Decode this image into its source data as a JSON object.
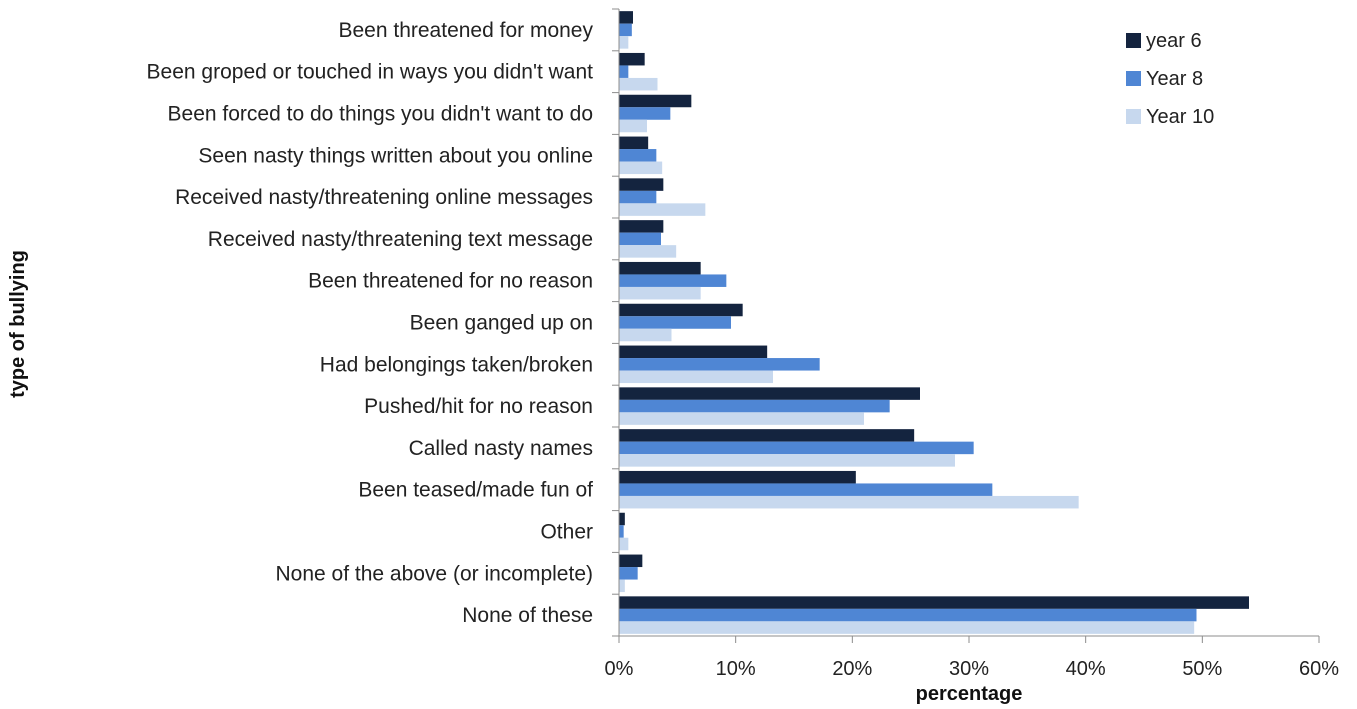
{
  "chart_data": {
    "type": "bar",
    "orientation": "horizontal",
    "xlabel": "percentage",
    "ylabel": "type of bullying",
    "xlim": [
      0,
      60
    ],
    "xticks": [
      "0%",
      "10%",
      "20%",
      "30%",
      "40%",
      "50%",
      "60%"
    ],
    "grid": false,
    "legend_position": "top-right",
    "categories": [
      "Been threatened for money",
      "Been groped or touched in ways you didn't want",
      "Been forced to do things you didn't want to do",
      "Seen nasty things written about you online",
      "Received nasty/threatening online messages",
      "Received nasty/threatening text message",
      "Been threatened for no reason",
      "Been ganged up on",
      "Had belongings taken/broken",
      "Pushed/hit for no reason",
      "Called nasty names",
      "Been teased/made fun of",
      "Other",
      "None of the above (or incomplete)",
      "None of these"
    ],
    "series": [
      {
        "name": "year 6",
        "color": "#14243f",
        "values": [
          1.2,
          2.2,
          6.2,
          2.5,
          3.8,
          3.8,
          7.0,
          10.6,
          12.7,
          25.8,
          25.3,
          20.3,
          0.5,
          2.0,
          54.0
        ]
      },
      {
        "name": "Year 8",
        "color": "#4f86d4",
        "values": [
          1.1,
          0.8,
          4.4,
          3.2,
          3.2,
          3.6,
          9.2,
          9.6,
          17.2,
          23.2,
          30.4,
          32.0,
          0.4,
          1.6,
          49.5
        ]
      },
      {
        "name": "Year 10",
        "color": "#c7d8ee",
        "values": [
          0.8,
          3.3,
          2.4,
          3.7,
          7.4,
          4.9,
          7.0,
          4.5,
          13.2,
          21.0,
          28.8,
          39.4,
          0.8,
          0.5,
          49.3
        ]
      }
    ]
  }
}
